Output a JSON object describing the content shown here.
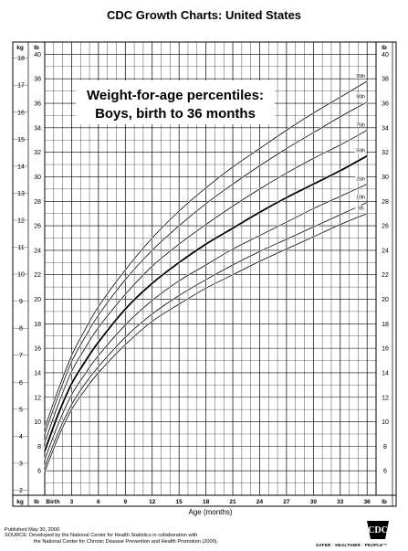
{
  "header": {
    "title": "CDC Growth Charts: United States"
  },
  "footer": {
    "published": "Published May 30, 2000.",
    "source_line1": "SOURCE: Developed by the National Center for Health Statistics in collaboration with",
    "source_line2": "the National Center for Chronic Disease Prevention and Health Promotion (2000).",
    "tagline": "SAFER · HEALTHIER · PEOPLE™",
    "logo_text": "CDC"
  },
  "chart_data": {
    "type": "line",
    "title_line1": "Weight-for-age percentiles:",
    "title_line2": "Boys, birth to 36 months",
    "xlabel": "Age (months)",
    "kg_unit": "kg",
    "lb_unit": "lb",
    "xlim": [
      0,
      37
    ],
    "ylim_lb": [
      4,
      41
    ],
    "x_ticks": [
      0,
      3,
      6,
      9,
      12,
      15,
      18,
      21,
      24,
      27,
      30,
      33,
      36
    ],
    "x_tick_labels": [
      "Birth",
      "3",
      "6",
      "9",
      "12",
      "15",
      "18",
      "21",
      "24",
      "27",
      "30",
      "33",
      "36"
    ],
    "lb_ticks": [
      6,
      8,
      10,
      12,
      14,
      16,
      18,
      20,
      22,
      24,
      26,
      28,
      30,
      32,
      34,
      36,
      38,
      40
    ],
    "kg_ticks": [
      2,
      3,
      4,
      5,
      6,
      7,
      8,
      9,
      10,
      11,
      12,
      13,
      14,
      15,
      16,
      17,
      18
    ],
    "grid": true,
    "legend_placement": "right-end-of-curves",
    "x": [
      0,
      1.5,
      3,
      4.5,
      6,
      9,
      12,
      15,
      18,
      21,
      24,
      27,
      30,
      33,
      36
    ],
    "series": [
      {
        "name": "95th",
        "values": [
          9.5,
          12.6,
          15.4,
          17.5,
          19.4,
          22.4,
          25.0,
          27.2,
          29.1,
          30.8,
          32.3,
          33.8,
          35.2,
          36.5,
          37.8
        ]
      },
      {
        "name": "90th",
        "values": [
          9.0,
          12.1,
          14.9,
          16.9,
          18.7,
          21.6,
          24.0,
          26.0,
          27.8,
          29.4,
          30.9,
          32.3,
          33.6,
          34.9,
          36.1
        ]
      },
      {
        "name": "75th",
        "values": [
          8.3,
          11.4,
          14.1,
          16.0,
          17.7,
          20.4,
          22.7,
          24.5,
          26.1,
          27.6,
          29.0,
          30.3,
          31.5,
          32.6,
          33.8
        ]
      },
      {
        "name": "50th",
        "values": [
          7.6,
          10.6,
          13.1,
          14.9,
          16.5,
          19.2,
          21.3,
          23.0,
          24.5,
          25.8,
          27.1,
          28.3,
          29.4,
          30.5,
          31.7
        ]
      },
      {
        "name": "25th",
        "values": [
          6.9,
          9.8,
          12.2,
          13.9,
          15.4,
          17.9,
          19.9,
          21.5,
          22.8,
          24.1,
          25.2,
          26.3,
          27.4,
          28.4,
          29.4
        ]
      },
      {
        "name": "10th",
        "values": [
          6.3,
          9.1,
          11.4,
          13.1,
          14.5,
          16.9,
          18.8,
          20.3,
          21.6,
          22.8,
          23.9,
          24.9,
          25.9,
          26.9,
          27.9
        ]
      },
      {
        "name": "5th",
        "values": [
          5.9,
          8.7,
          11.0,
          12.6,
          14.0,
          16.3,
          18.2,
          19.6,
          20.9,
          22.0,
          23.1,
          24.1,
          25.1,
          26.1,
          27.0
        ]
      }
    ]
  }
}
